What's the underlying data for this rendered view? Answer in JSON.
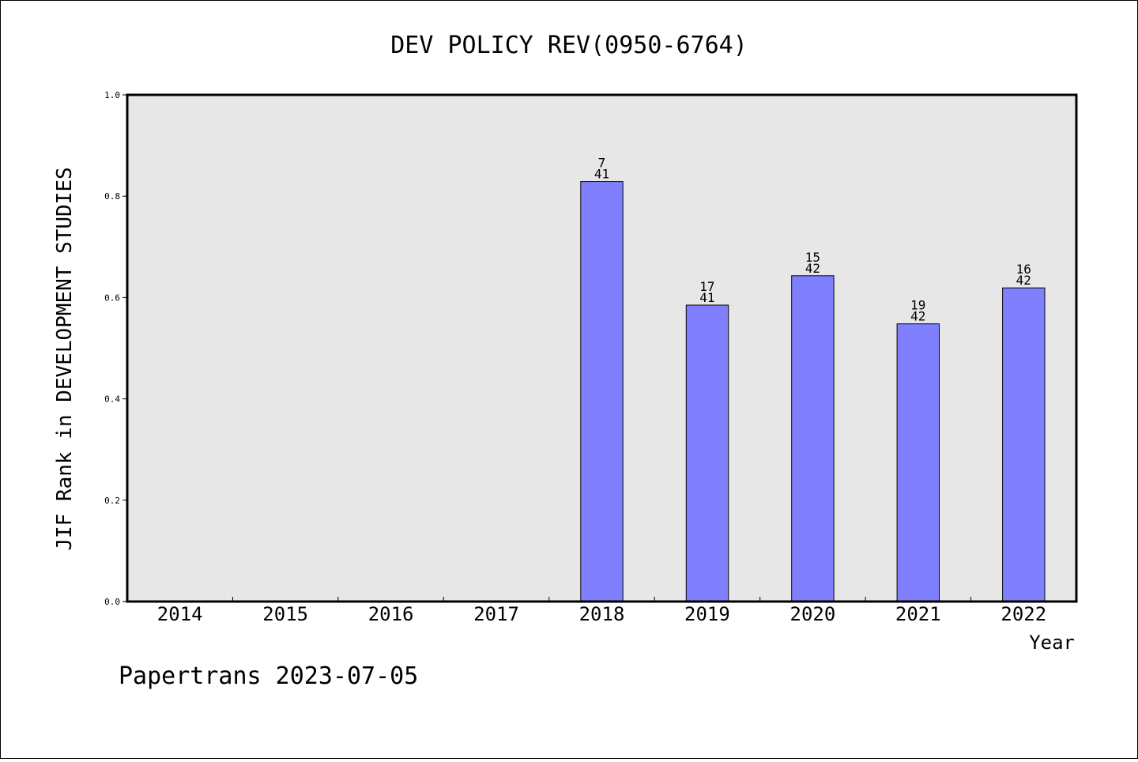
{
  "chart_data": {
    "type": "bar",
    "title": "DEV POLICY REV(0950-6764)",
    "ylabel": "JIF Rank in DEVELOPMENT STUDIES",
    "xlabel": "Year",
    "categories": [
      "2014",
      "2015",
      "2016",
      "2017",
      "2018",
      "2019",
      "2020",
      "2021",
      "2022"
    ],
    "values": [
      null,
      null,
      null,
      null,
      0.829,
      0.585,
      0.643,
      0.548,
      0.619
    ],
    "rank": [
      "",
      "",
      "",
      "",
      "7",
      "17",
      "15",
      "19",
      "16"
    ],
    "total": [
      "",
      "",
      "",
      "",
      "41",
      "41",
      "42",
      "42",
      "42"
    ],
    "ylim": [
      0,
      1.0
    ],
    "yticks": [
      "0.0",
      "0.2",
      "0.4",
      "0.6",
      "0.8",
      "1.0"
    ],
    "grid": false,
    "colors": {
      "bar": "#8080ff",
      "plot_background": "#e7e7e7"
    }
  },
  "footer": "Papertrans 2023-07-05"
}
